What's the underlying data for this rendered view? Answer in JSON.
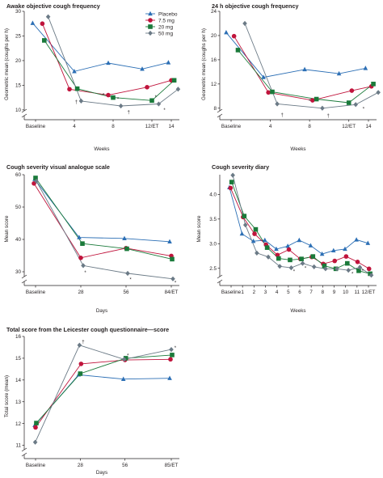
{
  "colors": {
    "Placebo": "#2c6fb5",
    "7.5 mg": "#c0143c",
    "20 mg": "#1a7a3a",
    "50 mg": "#6b7a86",
    "axis": "#231f20"
  },
  "legend_position": "top-right of first panel",
  "chart_data": [
    {
      "type": "line",
      "title": "Awake objective cough frequency",
      "xlabel": "Weeks",
      "ylabel": "Geometric mean (coughs per h)",
      "categories": [
        "Baseline",
        "4",
        "8",
        "12/ET",
        "14"
      ],
      "x": [
        0,
        4,
        8,
        12,
        14
      ],
      "yticks": [
        10,
        15,
        20,
        25,
        30
      ],
      "ylim": [
        8.5,
        30
      ],
      "axis_break": true,
      "grid": false,
      "legend": [
        "Placebo",
        "7.5 mg",
        "20 mg",
        "50 mg"
      ],
      "series": [
        {
          "name": "Placebo",
          "marker": "triangle",
          "points": [
            [
              -0.3,
              27.6
            ],
            [
              4,
              17.8
            ],
            [
              7.5,
              19.5
            ],
            [
              11,
              18.3
            ],
            [
              13.7,
              19.6
            ]
          ]
        },
        {
          "name": "7.5 mg",
          "marker": "circle",
          "points": [
            [
              0.7,
              27.5
            ],
            [
              3.5,
              14.2
            ],
            [
              7.5,
              13.0
            ],
            [
              11.5,
              14.6
            ],
            [
              14,
              16.0
            ]
          ]
        },
        {
          "name": "20 mg",
          "marker": "square",
          "points": [
            [
              0.9,
              24.1
            ],
            [
              4.3,
              14.3
            ],
            [
              8,
              12.5
            ],
            [
              12,
              11.9
            ],
            [
              14.3,
              16.0
            ]
          ]
        },
        {
          "name": "50 mg",
          "marker": "diamond",
          "points": [
            [
              1.3,
              28.9
            ],
            [
              4.7,
              11.8
            ],
            [
              8.8,
              10.8
            ],
            [
              12.7,
              11.2
            ],
            [
              14.7,
              14.2
            ]
          ]
        }
      ],
      "annotations": [
        {
          "text": "†",
          "x": 4.2,
          "y": 11.6
        },
        {
          "text": "*",
          "x": 7.0,
          "y": 13.0
        },
        {
          "text": "*",
          "x": 8.5,
          "y": 12.2
        },
        {
          "text": "†",
          "x": 9.6,
          "y": 9.6
        },
        {
          "text": "*",
          "x": 12.4,
          "y": 12.6
        },
        {
          "text": "*",
          "x": 13.3,
          "y": 10.0
        }
      ]
    },
    {
      "type": "line",
      "title": "24 h objective cough frequency",
      "xlabel": "Weeks",
      "ylabel": "Geometric mean (coughs per h)",
      "categories": [
        "Baseline",
        "4",
        "8",
        "12/ET",
        "14"
      ],
      "x": [
        0,
        4,
        8,
        12,
        14
      ],
      "yticks": [
        8,
        12,
        16,
        20,
        24
      ],
      "ylim": [
        6.5,
        24
      ],
      "axis_break": true,
      "grid": false,
      "series": [
        {
          "name": "Placebo",
          "marker": "triangle",
          "points": [
            [
              -0.5,
              20.5
            ],
            [
              3.3,
              13.1
            ],
            [
              7.5,
              14.4
            ],
            [
              11,
              13.7
            ],
            [
              13.7,
              14.6
            ]
          ]
        },
        {
          "name": "7.5 mg",
          "marker": "circle",
          "points": [
            [
              0.3,
              19.9
            ],
            [
              3.8,
              10.6
            ],
            [
              8.3,
              9.3
            ],
            [
              12.3,
              10.9
            ],
            [
              14.3,
              11.6
            ]
          ]
        },
        {
          "name": "20 mg",
          "marker": "square",
          "points": [
            [
              0.7,
              17.6
            ],
            [
              4.2,
              10.7
            ],
            [
              8.7,
              9.5
            ],
            [
              12,
              8.9
            ],
            [
              14.5,
              12.0
            ]
          ]
        },
        {
          "name": "50 mg",
          "marker": "diamond",
          "points": [
            [
              1.4,
              22.0
            ],
            [
              4.7,
              8.7
            ],
            [
              9.3,
              8.0
            ],
            [
              12.7,
              8.6
            ],
            [
              15,
              10.6
            ]
          ]
        }
      ],
      "annotations": [
        {
          "text": "†",
          "x": 5.2,
          "y": 6.9
        },
        {
          "text": "*",
          "x": 8.0,
          "y": 9.2
        },
        {
          "text": "†",
          "x": 9.9,
          "y": 6.8
        },
        {
          "text": "*",
          "x": 13.5,
          "y": 7.9
        }
      ]
    },
    {
      "type": "line",
      "title": "Cough severity visual analogue scale",
      "xlabel": "Days",
      "ylabel": "Mean score",
      "categories": [
        "Baseline",
        "28",
        "56",
        "84/ET"
      ],
      "x": [
        0,
        28,
        56,
        84
      ],
      "yticks": [
        30,
        40,
        50,
        60
      ],
      "ylim": [
        26.5,
        60
      ],
      "axis_break": true,
      "grid": false,
      "series": [
        {
          "name": "Placebo",
          "marker": "triangle",
          "points": [
            [
              -0.5,
              58.6
            ],
            [
              27,
              40.6
            ],
            [
              55,
              40.3
            ],
            [
              83,
              39.3
            ]
          ]
        },
        {
          "name": "7.5 mg",
          "marker": "circle",
          "points": [
            [
              -1,
              57.3
            ],
            [
              28,
              34.3
            ],
            [
              56,
              37.3
            ],
            [
              84,
              34.9
            ]
          ]
        },
        {
          "name": "20 mg",
          "marker": "square",
          "points": [
            [
              0,
              59.0
            ],
            [
              29,
              38.7
            ],
            [
              56.5,
              37.1
            ],
            [
              84.5,
              33.9
            ]
          ]
        },
        {
          "name": "50 mg",
          "marker": "diamond",
          "points": [
            [
              0.5,
              58.0
            ],
            [
              29.5,
              31.9
            ],
            [
              57,
              29.5
            ],
            [
              85,
              27.8
            ]
          ]
        }
      ],
      "annotations": [
        {
          "text": "*",
          "x": 30.8,
          "y": 29.7
        },
        {
          "text": "*",
          "x": 58.8,
          "y": 27.6
        },
        {
          "text": "*",
          "x": 86.5,
          "y": 26.6
        }
      ]
    },
    {
      "type": "line",
      "title": "Cough severity diary",
      "xlabel": "Weeks",
      "ylabel": "Mean score",
      "categories": [
        "Baseline",
        "1",
        "2",
        "3",
        "4",
        "5",
        "6",
        "7",
        "8",
        "9",
        "10",
        "11",
        "12/ET"
      ],
      "x": [
        0,
        1,
        2,
        3,
        4,
        5,
        6,
        7,
        8,
        9,
        10,
        11,
        12
      ],
      "yticks": [
        2.5,
        3.0,
        3.5,
        4.0
      ],
      "yticklabels": [
        "2.5",
        "3.0",
        "3.5",
        "4.0"
      ],
      "ylim": [
        2.2,
        4.4
      ],
      "axis_break": true,
      "grid": false,
      "series": [
        {
          "name": "Placebo",
          "marker": "triangle",
          "points": [
            [
              -0.15,
              4.14
            ],
            [
              0.95,
              3.2
            ],
            [
              1.95,
              3.05
            ],
            [
              2.95,
              3.07
            ],
            [
              3.95,
              2.89
            ],
            [
              4.95,
              2.95
            ],
            [
              5.95,
              3.07
            ],
            [
              6.95,
              2.96
            ],
            [
              7.95,
              2.79
            ],
            [
              8.95,
              2.86
            ],
            [
              9.95,
              2.89
            ],
            [
              10.95,
              3.08
            ],
            [
              11.95,
              3.01
            ]
          ]
        },
        {
          "name": "7.5 mg",
          "marker": "circle",
          "points": [
            [
              -0.05,
              4.13
            ],
            [
              1.05,
              3.54
            ],
            [
              2.05,
              3.2
            ],
            [
              3.05,
              2.98
            ],
            [
              4.05,
              2.77
            ],
            [
              5.05,
              2.88
            ],
            [
              6.05,
              2.69
            ],
            [
              7.05,
              2.73
            ],
            [
              8.05,
              2.59
            ],
            [
              9.05,
              2.65
            ],
            [
              10.05,
              2.74
            ],
            [
              11.05,
              2.63
            ],
            [
              12.05,
              2.49
            ]
          ]
        },
        {
          "name": "20 mg",
          "marker": "square",
          "points": [
            [
              0.05,
              4.25
            ],
            [
              1.15,
              3.56
            ],
            [
              2.15,
              3.29
            ],
            [
              3.15,
              2.92
            ],
            [
              4.15,
              2.7
            ],
            [
              5.15,
              2.67
            ],
            [
              6.15,
              2.69
            ],
            [
              7.15,
              2.74
            ],
            [
              8.15,
              2.55
            ],
            [
              9.15,
              2.49
            ],
            [
              10.15,
              2.6
            ],
            [
              11.15,
              2.45
            ],
            [
              12.15,
              2.39
            ]
          ]
        },
        {
          "name": "50 mg",
          "marker": "diamond",
          "points": [
            [
              0.15,
              4.39
            ],
            [
              1.25,
              3.38
            ],
            [
              2.25,
              2.81
            ],
            [
              3.25,
              2.73
            ],
            [
              4.25,
              2.54
            ],
            [
              5.25,
              2.51
            ],
            [
              6.25,
              2.6
            ],
            [
              7.25,
              2.53
            ],
            [
              8.25,
              2.49
            ],
            [
              9.25,
              2.49
            ],
            [
              10.25,
              2.46
            ],
            [
              11.25,
              2.52
            ],
            [
              12.25,
              2.36
            ]
          ]
        }
      ],
      "annotations": [
        {
          "text": "*",
          "x": 5.5,
          "y": 2.44
        },
        {
          "text": "*",
          "x": 6.5,
          "y": 2.5
        },
        {
          "text": "*",
          "x": 10.6,
          "y": 2.39
        },
        {
          "text": "*",
          "x": 11.5,
          "y": 2.45
        }
      ]
    },
    {
      "type": "line",
      "title": "Total score from the Leicester cough questionnaire—score",
      "xlabel": "Days",
      "ylabel": "Total score (mean)",
      "categories": [
        "Baseline",
        "28",
        "56",
        "85/ET"
      ],
      "x": [
        0,
        28,
        56,
        85
      ],
      "yticks": [
        11,
        12,
        13,
        14,
        15,
        16
      ],
      "ylim": [
        10.5,
        16
      ],
      "axis_break": true,
      "grid": false,
      "series": [
        {
          "name": "Placebo",
          "marker": "triangle",
          "points": [
            [
              -0.5,
              11.92
            ],
            [
              27,
              14.24
            ],
            [
              55,
              14.04
            ],
            [
              84,
              14.08
            ]
          ]
        },
        {
          "name": "7.5 mg",
          "marker": "circle",
          "points": [
            [
              0,
              11.82
            ],
            [
              28.5,
              14.74
            ],
            [
              56,
              14.92
            ],
            [
              84.5,
              14.95
            ]
          ]
        },
        {
          "name": "20 mg",
          "marker": "square",
          "points": [
            [
              0.5,
              12.02
            ],
            [
              28,
              14.29
            ],
            [
              56.5,
              15.0
            ],
            [
              85.5,
              15.15
            ]
          ]
        },
        {
          "name": "50 mg",
          "marker": "diamond",
          "points": [
            [
              -0.2,
              11.14
            ],
            [
              27.5,
              15.6
            ],
            [
              55.5,
              14.95
            ],
            [
              85,
              15.4
            ]
          ]
        }
      ],
      "annotations": [
        {
          "text": "†",
          "x": 29.8,
          "y": 15.75
        },
        {
          "text": "*",
          "x": 57.8,
          "y": 15.12
        },
        {
          "text": "*",
          "x": 87.5,
          "y": 15.48
        }
      ]
    }
  ]
}
